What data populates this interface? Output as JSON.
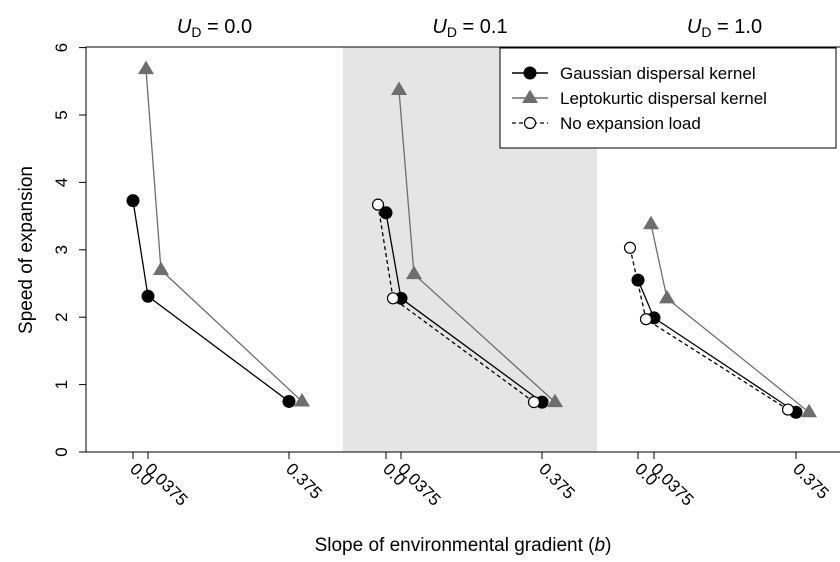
{
  "chart_data": {
    "type": "line",
    "xlabel": "Slope of environmental gradient (b)",
    "xlabel_main": "Slope of environmental gradient (",
    "xlabel_var": "b",
    "xlabel_close": ")",
    "ylabel": "Speed of expansion",
    "ylim": [
      0,
      6
    ],
    "y_ticks": [
      "0",
      "1",
      "2",
      "3",
      "4",
      "5",
      "6"
    ],
    "x_tick_labels": [
      "0.0",
      "0.0375",
      "0.375"
    ],
    "x_ticks": [
      0.0,
      0.0375,
      0.375
    ],
    "grid": false,
    "legend_position": "top-right",
    "colors": {
      "gaussian": "#000000",
      "leptokurtic": "#6e6e6e",
      "no_load": "#000000",
      "shade": "#e5e5e5"
    },
    "legend": [
      {
        "label": "Gaussian dispersal kernel",
        "style": "solid-filled-circle"
      },
      {
        "label": "Leptokurtic dispersal kernel",
        "style": "solid-gray-triangle"
      },
      {
        "label": "No expansion load",
        "style": "dashed-open-circle"
      }
    ],
    "panels": [
      {
        "title_var": "U",
        "title_sub": "D",
        "title_value": " = 0.0",
        "title": "U_D = 0.0",
        "shaded": false,
        "series": [
          {
            "name": "Gaussian dispersal kernel",
            "x": [
              0.0,
              0.0375,
              0.375
            ],
            "y": [
              3.73,
              2.31,
              0.75
            ]
          },
          {
            "name": "Leptokurtic dispersal kernel",
            "x": [
              0.0,
              0.0375,
              0.375
            ],
            "y": [
              5.68,
              2.7,
              0.75
            ]
          }
        ]
      },
      {
        "title_var": "U",
        "title_sub": "D",
        "title_value": " = 0.1",
        "title": "U_D = 0.1",
        "shaded": true,
        "series": [
          {
            "name": "Gaussian dispersal kernel",
            "x": [
              0.0,
              0.0375,
              0.375
            ],
            "y": [
              3.55,
              2.28,
              0.74
            ]
          },
          {
            "name": "Leptokurtic dispersal kernel",
            "x": [
              0.0,
              0.0375,
              0.375
            ],
            "y": [
              5.37,
              2.64,
              0.74
            ]
          },
          {
            "name": "No expansion load",
            "x": [
              0.0,
              0.0375,
              0.375
            ],
            "y": [
              3.67,
              2.28,
              0.74
            ]
          }
        ]
      },
      {
        "title_var": "U",
        "title_sub": "D",
        "title_value": " = 1.0",
        "title": "U_D = 1.0",
        "shaded": false,
        "series": [
          {
            "name": "Gaussian dispersal kernel",
            "x": [
              0.0,
              0.0375,
              0.375
            ],
            "y": [
              2.55,
              1.99,
              0.59
            ]
          },
          {
            "name": "Leptokurtic dispersal kernel",
            "x": [
              0.0,
              0.0375,
              0.375
            ],
            "y": [
              3.38,
              2.28,
              0.59
            ]
          },
          {
            "name": "No expansion load",
            "x": [
              0.0,
              0.0375,
              0.375
            ],
            "y": [
              3.03,
              1.97,
              0.63
            ]
          }
        ]
      }
    ]
  }
}
